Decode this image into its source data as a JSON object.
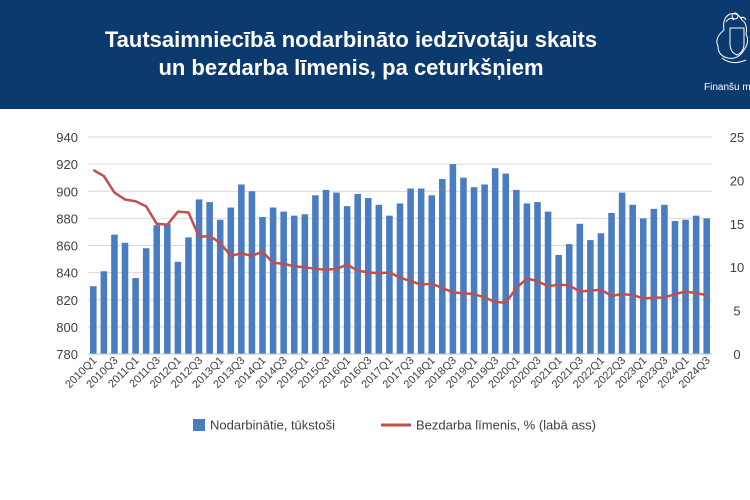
{
  "header": {
    "title_line1": "Tautsaimniecībā nodarbināto iedzīvotāju skaits",
    "title_line2": "un bezdarba līmenis, pa ceturkšņiem",
    "logo_label": "Finanšu m"
  },
  "colors": {
    "header_bg": "#0b3a6e",
    "bars": "#4a7cc2",
    "line": "#c0504d"
  },
  "chart_data": {
    "type": "bar+line",
    "categories": [
      "2010Q1",
      "2010Q2",
      "2010Q3",
      "2010Q4",
      "2011Q1",
      "2011Q2",
      "2011Q3",
      "2011Q4",
      "2012Q1",
      "2012Q2",
      "2012Q3",
      "2012Q4",
      "2013Q1",
      "2013Q2",
      "2013Q3",
      "2013Q4",
      "2014Q1",
      "2014Q2",
      "2014Q3",
      "2014Q4",
      "2015Q1",
      "2015Q2",
      "2015Q3",
      "2015Q4",
      "2016Q1",
      "2016Q2",
      "2016Q3",
      "2016Q4",
      "2017Q1",
      "2017Q2",
      "2017Q3",
      "2017Q4",
      "2018Q1",
      "2018Q2",
      "2018Q3",
      "2018Q4",
      "2019Q1",
      "2019Q2",
      "2019Q3",
      "2019Q4",
      "2020Q1",
      "2020Q2",
      "2020Q3",
      "2020Q4",
      "2021Q1",
      "2021Q2",
      "2021Q3",
      "2021Q4",
      "2022Q1",
      "2022Q2",
      "2022Q3",
      "2022Q4",
      "2023Q1",
      "2023Q2",
      "2023Q3",
      "2023Q4",
      "2024Q1",
      "2024Q2",
      "2024Q3"
    ],
    "tick_labels": [
      "2010Q1",
      "2010Q3",
      "2011Q1",
      "2011Q3",
      "2012Q1",
      "2012Q3",
      "2013Q1",
      "2013Q3",
      "2014Q1",
      "2014Q3",
      "2015Q1",
      "2015Q3",
      "2016Q1",
      "2016Q3",
      "2017Q1",
      "2017Q3",
      "2018Q1",
      "2018Q3",
      "2019Q1",
      "2019Q3",
      "2020Q1",
      "2020Q3",
      "2021Q1",
      "2021Q3",
      "2022Q1",
      "2022Q3",
      "2023Q1",
      "2023Q3",
      "2024Q1",
      "2024Q3"
    ],
    "series": [
      {
        "name": "Nodarbinātie, tūkstoši",
        "type": "bar",
        "axis": "left",
        "values": [
          830,
          841,
          868,
          862,
          836,
          858,
          875,
          876,
          848,
          866,
          894,
          892,
          879,
          888,
          905,
          900,
          881,
          888,
          885,
          882,
          883,
          897,
          901,
          899,
          889,
          898,
          895,
          890,
          882,
          891,
          902,
          902,
          897,
          909,
          920,
          910,
          903,
          905,
          917,
          913,
          901,
          891,
          892,
          885,
          853,
          861,
          876,
          864,
          869,
          884,
          899,
          890,
          880,
          887,
          890,
          878,
          879,
          882,
          880
        ]
      },
      {
        "name": "Bezdarba līmenis, % (labā ass)",
        "type": "line",
        "axis": "right",
        "values": [
          21.2,
          20.5,
          18.6,
          17.8,
          17.6,
          17.0,
          15.0,
          14.9,
          16.4,
          16.3,
          13.5,
          13.6,
          12.8,
          11.3,
          11.6,
          11.3,
          11.8,
          10.5,
          10.4,
          10.1,
          10.0,
          9.8,
          9.7,
          9.8,
          10.3,
          9.6,
          9.4,
          9.3,
          9.4,
          8.8,
          8.4,
          8.0,
          8.1,
          7.6,
          7.1,
          7.0,
          6.9,
          6.5,
          6.0,
          5.9,
          7.6,
          8.7,
          8.4,
          7.8,
          8.0,
          7.9,
          7.2,
          7.3,
          7.4,
          6.7,
          6.9,
          6.8,
          6.4,
          6.5,
          6.5,
          6.9,
          7.2,
          7.0,
          6.8
        ]
      }
    ],
    "y_left": {
      "min": 780,
      "max": 940,
      "step": 20
    },
    "y_right": {
      "min": 0,
      "max": 25,
      "step": 5
    },
    "legend": [
      "Nodarbinātie, tūkstoši",
      "Bezdarba līmenis, % (labā ass)"
    ],
    "legend_position": "bottom",
    "grid": true
  }
}
